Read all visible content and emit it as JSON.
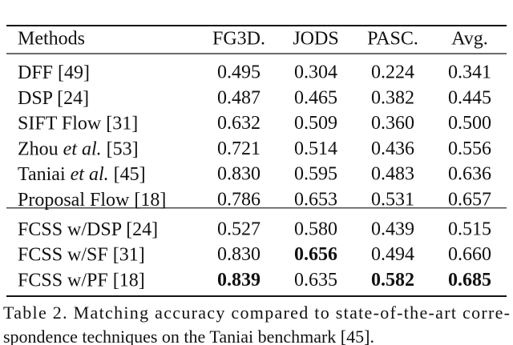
{
  "table": {
    "header": [
      "Methods",
      "FG3D.",
      "JODS",
      "PASC.",
      "Avg."
    ],
    "groups": [
      [
        {
          "method": [
            {
              "text": "DFF [49]"
            }
          ],
          "values": [
            "0.495",
            "0.304",
            "0.224",
            "0.341"
          ],
          "bold": []
        },
        {
          "method": [
            {
              "text": "DSP [24]"
            }
          ],
          "values": [
            "0.487",
            "0.465",
            "0.382",
            "0.445"
          ],
          "bold": []
        },
        {
          "method": [
            {
              "text": "SIFT Flow [31]"
            }
          ],
          "values": [
            "0.632",
            "0.509",
            "0.360",
            "0.500"
          ],
          "bold": []
        },
        {
          "method": [
            {
              "text": "Zhou "
            },
            {
              "text": "et al.",
              "style": "italic"
            },
            {
              "text": " [53]"
            }
          ],
          "values": [
            "0.721",
            "0.514",
            "0.436",
            "0.556"
          ],
          "bold": []
        },
        {
          "method": [
            {
              "text": "Taniai "
            },
            {
              "text": "et al.",
              "style": "italic"
            },
            {
              "text": " [45]"
            }
          ],
          "values": [
            "0.830",
            "0.595",
            "0.483",
            "0.636"
          ],
          "bold": []
        },
        {
          "method": [
            {
              "text": "Proposal Flow [18]"
            }
          ],
          "values": [
            "0.786",
            "0.653",
            "0.531",
            "0.657"
          ],
          "bold": []
        }
      ],
      [
        {
          "method": [
            {
              "text": "FCSS w/DSP [24]"
            }
          ],
          "values": [
            "0.527",
            "0.580",
            "0.439",
            "0.515"
          ],
          "bold": []
        },
        {
          "method": [
            {
              "text": "FCSS w/SF [31]"
            }
          ],
          "values": [
            "0.830",
            "0.656",
            "0.494",
            "0.660"
          ],
          "bold": [
            1
          ]
        },
        {
          "method": [
            {
              "text": "FCSS w/PF [18]"
            }
          ],
          "values": [
            "0.839",
            "0.635",
            "0.582",
            "0.685"
          ],
          "bold": [
            0,
            2,
            3
          ]
        }
      ]
    ]
  },
  "caption": {
    "lines": [
      "Table 2. Matching accuracy compared to state-of-the-art corre-",
      "spondence techniques on the Taniai benchmark [45]."
    ]
  }
}
